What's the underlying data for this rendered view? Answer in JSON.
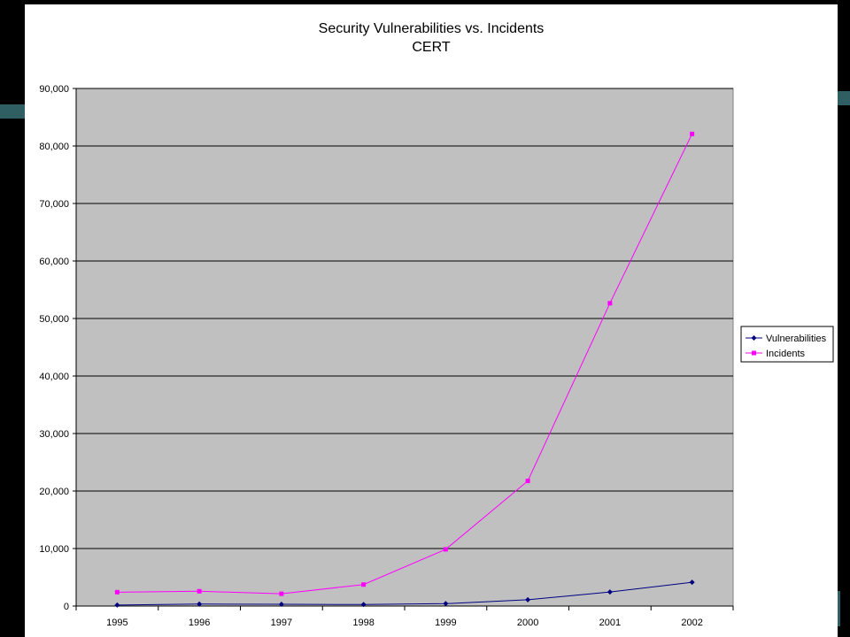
{
  "chart_data": {
    "type": "line",
    "title": "Security Vulnerabilities vs. Incidents",
    "subtitle": "CERT",
    "xlabel": "",
    "ylabel": "",
    "categories": [
      "1995",
      "1996",
      "1997",
      "1998",
      "1999",
      "2000",
      "2001",
      "2002"
    ],
    "ylim": [
      0,
      90000
    ],
    "yticks": [
      0,
      10000,
      20000,
      30000,
      40000,
      50000,
      60000,
      70000,
      80000,
      90000
    ],
    "ytick_labels": [
      "0",
      "10,000",
      "20,000",
      "30,000",
      "40,000",
      "50,000",
      "60,000",
      "70,000",
      "80,000",
      "90,000"
    ],
    "grid": "horizontal",
    "legend_position": "right",
    "plot_background": "#c0c0c0",
    "series": [
      {
        "name": "Vulnerabilities",
        "color": "#000080",
        "marker": "diamond",
        "values": [
          171,
          345,
          311,
          262,
          417,
          1090,
          2437,
          4129
        ]
      },
      {
        "name": "Incidents",
        "color": "#ff00ff",
        "marker": "square",
        "values": [
          2412,
          2573,
          2134,
          3734,
          9859,
          21756,
          52658,
          82094
        ]
      }
    ]
  }
}
